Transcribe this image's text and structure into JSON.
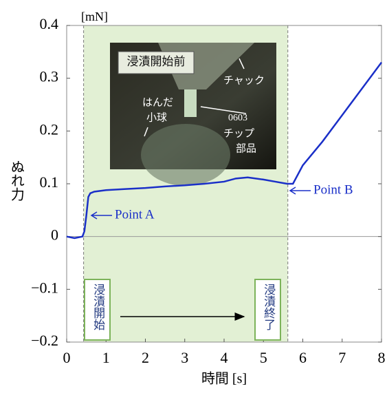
{
  "chart_data": {
    "type": "line",
    "unit_label": "[mN]",
    "y_label": "ぬれ力",
    "x_label": "時間 [s]",
    "x": [
      0,
      0.2,
      0.4,
      0.45,
      0.5,
      0.55,
      0.6,
      0.7,
      1,
      1.5,
      2,
      2.5,
      3,
      3.5,
      4,
      4.3,
      4.6,
      5,
      5.3,
      5.6,
      5.75,
      6,
      6.5,
      7,
      7.5,
      7.8,
      8
    ],
    "series": [
      {
        "name": "ぬれ力",
        "color": "#1a2fc8",
        "values": [
          0,
          -0.003,
          0,
          0.01,
          0.04,
          0.075,
          0.082,
          0.085,
          0.088,
          0.09,
          0.092,
          0.095,
          0.097,
          0.1,
          0.104,
          0.11,
          0.112,
          0.108,
          0.104,
          0.1,
          0.1,
          0.135,
          0.18,
          0.23,
          0.28,
          0.31,
          0.33
        ]
      }
    ],
    "xlim": [
      0,
      8
    ],
    "ylim": [
      -0.2,
      0.4
    ],
    "xticks": [
      0,
      1,
      2,
      3,
      4,
      5,
      6,
      7,
      8
    ],
    "yticks": [
      {
        "value": -0.2,
        "label": "−0.2"
      },
      {
        "value": -0.1,
        "label": "−0.1"
      },
      0,
      0.1,
      0.2,
      0.3,
      0.4
    ],
    "immersion": {
      "start": 0.43,
      "end": 5.62,
      "color": "#e2f0d4",
      "start_label": "浸漬開始",
      "end_label": "浸漬終了"
    },
    "point_a": {
      "label": "Point A"
    },
    "point_b": {
      "label": "Point B"
    },
    "photo": {
      "title": "浸漬開始前",
      "chuck": "チャック",
      "solder": [
        "はんだ",
        "小球"
      ],
      "chip": [
        "0603",
        "チップ",
        "部品"
      ]
    }
  }
}
